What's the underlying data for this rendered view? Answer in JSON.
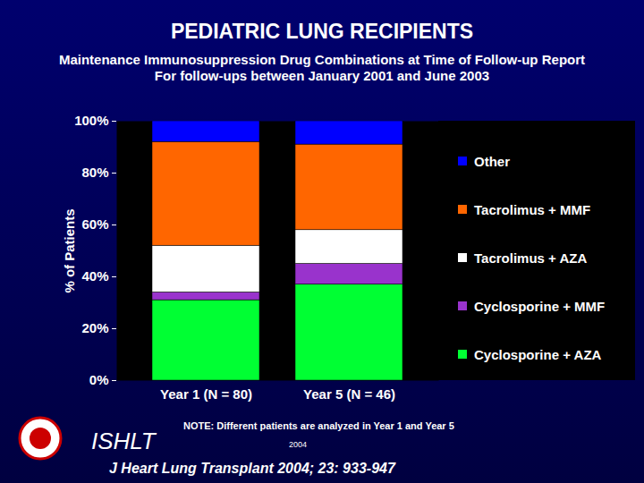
{
  "chart_data": {
    "type": "bar",
    "stacked": true,
    "title": "PEDIATRIC LUNG RECIPIENTS",
    "subtitle": [
      "Maintenance Immunosuppression Drug Combinations at Time of Follow-up Report",
      "For follow-ups between January 2001 and June 2003"
    ],
    "y_label": "% of Patients",
    "categories": [
      "Year 1 (N = 80)",
      "Year 5 (N = 46)"
    ],
    "series": [
      {
        "name": "Cyclosporine + AZA",
        "color": "#00ff33",
        "values": [
          31,
          37
        ]
      },
      {
        "name": "Cyclosporine + MMF",
        "color": "#9933cc",
        "values": [
          3,
          8
        ]
      },
      {
        "name": "Tacrolimus + AZA",
        "color": "#ffffff",
        "values": [
          18,
          13
        ]
      },
      {
        "name": "Tacrolimus + MMF",
        "color": "#ff6600",
        "values": [
          40,
          33
        ]
      },
      {
        "name": "Other",
        "color": "#0000ff",
        "values": [
          8,
          9
        ]
      }
    ],
    "ylim": [
      0,
      100
    ],
    "yticks": [
      {
        "value": 0,
        "label": "0%"
      },
      {
        "value": 20,
        "label": "20%"
      },
      {
        "value": 40,
        "label": "40%"
      },
      {
        "value": 60,
        "label": "60%"
      },
      {
        "value": 80,
        "label": "80%"
      },
      {
        "value": 100,
        "label": "100%"
      }
    ],
    "legend": "right",
    "annotations": [
      "NOTE: Different patients are analyzed in Year 1 and Year 5",
      "ISHLT",
      "2004",
      "J Heart Lung Transplant 2004; 23: 933-947"
    ]
  }
}
